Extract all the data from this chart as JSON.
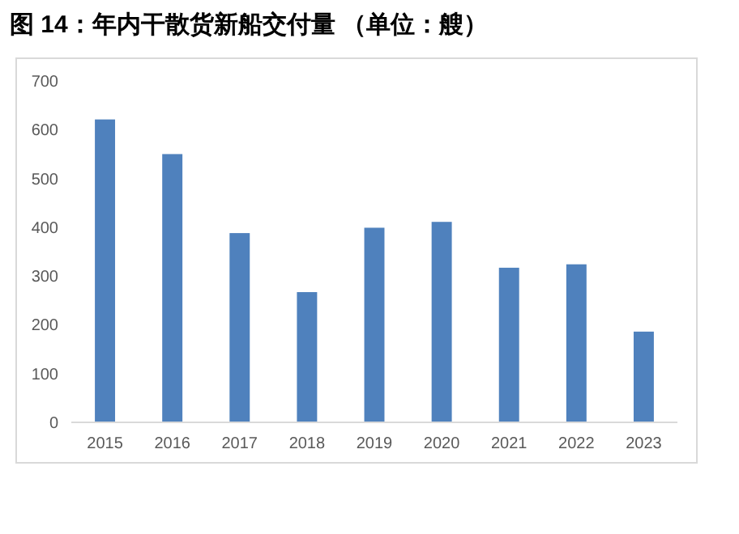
{
  "chart_data": {
    "type": "bar",
    "title": "图 14：年内干散货新船交付量 （单位：艘）",
    "categories": [
      "2015",
      "2016",
      "2017",
      "2018",
      "2019",
      "2020",
      "2021",
      "2022",
      "2023"
    ],
    "values": [
      621,
      550,
      388,
      267,
      399,
      411,
      317,
      324,
      186
    ],
    "color": "#4f81bd",
    "ylim": [
      0,
      700
    ],
    "yticks": [
      0,
      100,
      200,
      300,
      400,
      500,
      600,
      700
    ]
  }
}
